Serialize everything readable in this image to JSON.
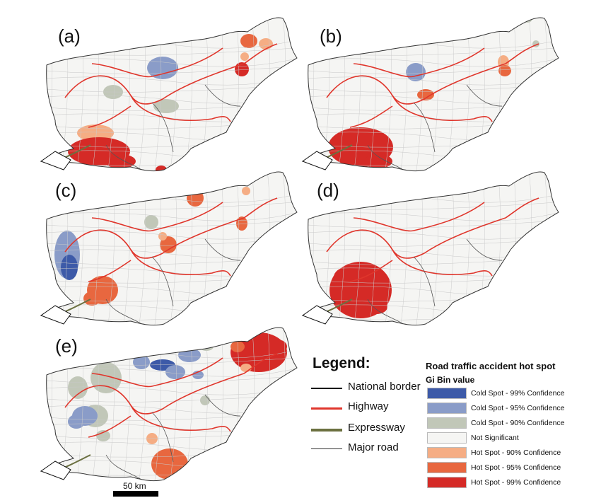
{
  "panels": [
    {
      "label": "(a)"
    },
    {
      "label": "(b)"
    },
    {
      "label": "(c)"
    },
    {
      "label": "(d)"
    },
    {
      "label": "(e)"
    }
  ],
  "legend": {
    "title": "Legend:",
    "lines": [
      {
        "label": "National border",
        "color": "#111111"
      },
      {
        "label": "Highway",
        "color": "#e0362c"
      },
      {
        "label": "Expressway",
        "color": "#6b7040"
      },
      {
        "label": "Major road",
        "color": "#333333"
      }
    ]
  },
  "hotspot_legend": {
    "title": "Road traffic accident hot spot",
    "subtitle": "Gi Bin value",
    "classes": [
      {
        "label": "Cold Spot - 99% Confidence",
        "color": "#3d5aa8"
      },
      {
        "label": "Cold Spot - 95% Confidence",
        "color": "#8a9cc8"
      },
      {
        "label": "Cold Spot - 90% Confidence",
        "color": "#c1c7b8"
      },
      {
        "label": "Not Significant",
        "color": "#f5f5f3"
      },
      {
        "label": "Hot Spot - 90% Confidence",
        "color": "#f5ad84"
      },
      {
        "label": "Hot Spot - 95% Confidence",
        "color": "#e8673f"
      },
      {
        "label": "Hot Spot - 99% Confidence",
        "color": "#d52a26"
      }
    ]
  },
  "scale_bar": {
    "label": "50 km"
  }
}
